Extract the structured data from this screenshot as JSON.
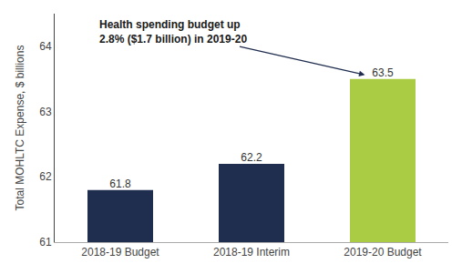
{
  "chart_data": {
    "type": "bar",
    "categories": [
      "2018-19 Budget",
      "2018-19 Interim",
      "2019-20 Budget"
    ],
    "values": [
      61.8,
      62.2,
      63.5
    ],
    "colors": [
      "#1f2d4e",
      "#1f2d4e",
      "#aacc44"
    ],
    "ylabel": "Total MOHLTC Expense, $ billions",
    "ylim": [
      61,
      64.5
    ],
    "yticks": [
      61,
      62,
      63,
      64
    ],
    "grid": false,
    "data_labels": true,
    "annotation": "Health spending budget up\n2.8% ($1.7 billion) in 2019-20"
  }
}
